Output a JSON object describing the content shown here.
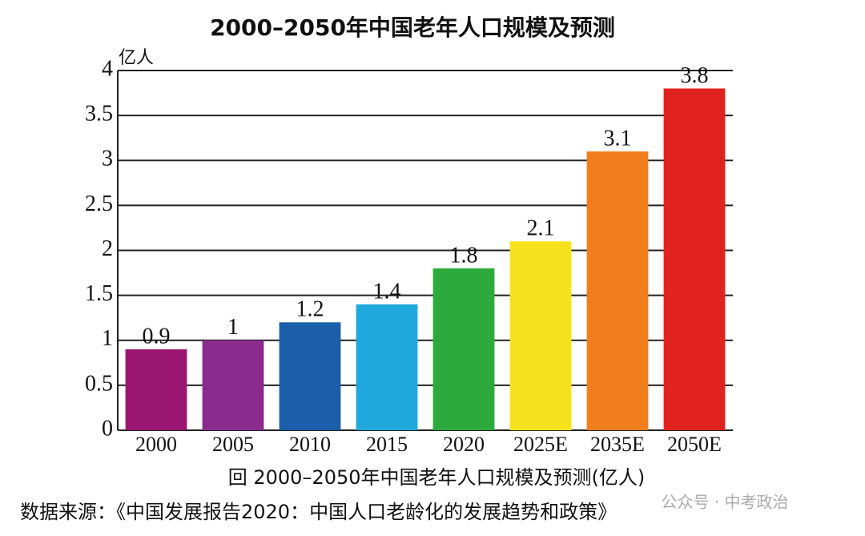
{
  "chart_data": {
    "type": "bar",
    "title": "2000–2050年中国老年人口规模及预测",
    "y_unit": "亿人",
    "categories": [
      "2000",
      "2005",
      "2010",
      "2015",
      "2020",
      "2025E",
      "2035E",
      "2050E"
    ],
    "values": [
      0.9,
      1,
      1.2,
      1.4,
      1.8,
      2.1,
      3.1,
      3.8
    ],
    "colors": [
      "#9b1670",
      "#8b2b8e",
      "#1b5ea9",
      "#1fa9dc",
      "#2caa3c",
      "#f6e21c",
      "#f07e1c",
      "#e1231f"
    ],
    "ylim": [
      0,
      4
    ],
    "yticks": [
      0,
      0.5,
      1,
      1.5,
      2,
      2.5,
      3,
      3.5,
      4
    ],
    "grid": true,
    "caption": "回 2000–2050年中国老年人口规模及预测(亿人)",
    "source": "数据来源：《中国发展报告2020：中国人口老龄化的发展趋势和政策》",
    "watermark": "公众号 · 中考政治"
  }
}
